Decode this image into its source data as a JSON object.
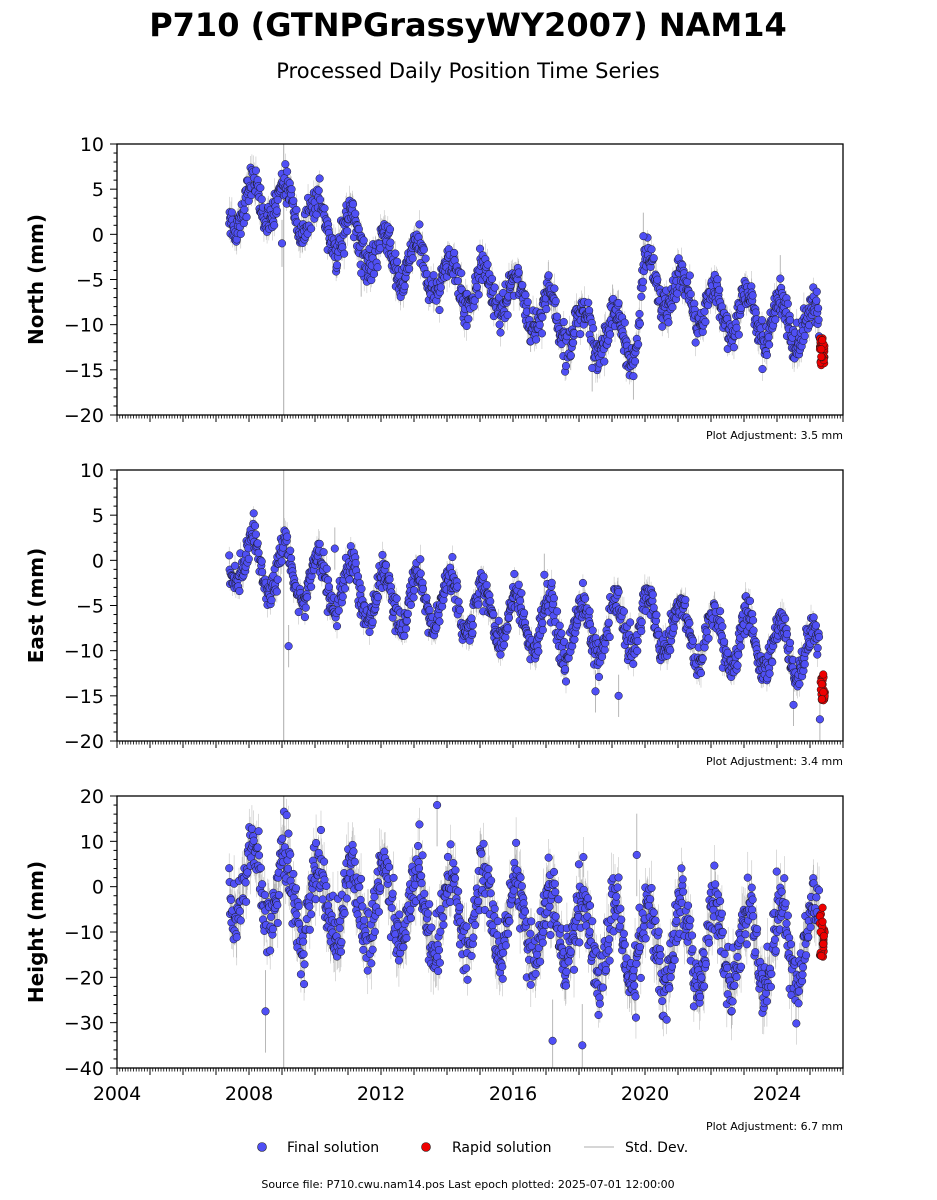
{
  "title": "P710 (GTNPGrassyWY2007) NAM14",
  "subtitle": "Processed Daily Position Time Series",
  "source_note": "Source file: P710.cwu.nam14.pos  Last epoch plotted: 2025-07-01 12:00:00",
  "legend": {
    "final": "Final solution",
    "rapid": "Rapid solution",
    "std": "Std. Dev."
  },
  "colors": {
    "final": "#4f4ff5",
    "rapid": "#ee0000",
    "std": "#b8b8b8"
  },
  "chart_data": [
    {
      "type": "scatter",
      "ylabel": "North (mm)",
      "ylim": [
        -20,
        10
      ],
      "yticks": [
        10,
        5,
        0,
        -5,
        -10,
        -15,
        -20
      ],
      "xlim": [
        2004,
        2026
      ],
      "adjustment": "Plot Adjustment: 3.5 mm",
      "trend": [
        [
          2007.4,
          3
        ],
        [
          2009,
          3.5
        ],
        [
          2010,
          2
        ],
        [
          2012,
          -2
        ],
        [
          2014,
          -5
        ],
        [
          2016,
          -7
        ],
        [
          2018,
          -10.5
        ],
        [
          2019.7,
          -11.5
        ],
        [
          2020,
          -5
        ],
        [
          2022,
          -8
        ],
        [
          2024,
          -10
        ],
        [
          2025.4,
          -10
        ]
      ],
      "seasonal_amp": 2.5,
      "noise": 1.0,
      "outliers": [
        [
          2009.0,
          -1
        ],
        [
          2011.4,
          -4.3
        ],
        [
          2019.95,
          -0.2
        ],
        [
          2024.1,
          -4.9
        ],
        [
          2019.65,
          -15.7
        ],
        [
          2018.4,
          -14.8
        ]
      ],
      "rapid": {
        "x": [
          2025.3,
          2025.45
        ],
        "y": [
          -14.5,
          -11.5
        ]
      }
    },
    {
      "type": "scatter",
      "ylabel": "East (mm)",
      "ylim": [
        -20,
        10
      ],
      "yticks": [
        10,
        5,
        0,
        -5,
        -10,
        -15,
        -20
      ],
      "xlim": [
        2004,
        2026
      ],
      "adjustment": "Plot Adjustment: 3.4 mm",
      "trend": [
        [
          2007.4,
          0.5
        ],
        [
          2010,
          -2.5
        ],
        [
          2012,
          -4
        ],
        [
          2014,
          -4.5
        ],
        [
          2016,
          -6.5
        ],
        [
          2018,
          -8
        ],
        [
          2020,
          -7
        ],
        [
          2022,
          -8.5
        ],
        [
          2024,
          -9.5
        ],
        [
          2025.4,
          -10.5
        ]
      ],
      "seasonal_amp": 3.0,
      "noise": 0.9,
      "outliers": [
        [
          2010.6,
          1.3
        ],
        [
          2016.95,
          -1.6
        ],
        [
          2009.2,
          -9.5
        ],
        [
          2018.5,
          -14.5
        ],
        [
          2019.2,
          -15
        ],
        [
          2024.5,
          -16
        ],
        [
          2025.3,
          -17.6
        ]
      ],
      "rapid": {
        "x": [
          2025.3,
          2025.45
        ],
        "y": [
          -15.5,
          -12.5
        ]
      }
    },
    {
      "type": "scatter",
      "ylabel": "Height (mm)",
      "ylim": [
        -40,
        20
      ],
      "yticks": [
        20,
        10,
        0,
        -10,
        -20,
        -30,
        -40
      ],
      "xlim": [
        2004,
        2026
      ],
      "xticks": [
        2004,
        2008,
        2012,
        2016,
        2020,
        2024
      ],
      "adjustment": "Plot Adjustment: 6.7 mm",
      "trend": [
        [
          2007.4,
          2
        ],
        [
          2010,
          -3
        ],
        [
          2012,
          -4
        ],
        [
          2014,
          -5
        ],
        [
          2016,
          -7
        ],
        [
          2018,
          -11
        ],
        [
          2020,
          -13
        ],
        [
          2022,
          -13
        ],
        [
          2024,
          -13
        ],
        [
          2025.4,
          -13
        ]
      ],
      "seasonal_amp": 9.0,
      "noise": 3.5,
      "outliers": [
        [
          2008.5,
          -27.5
        ],
        [
          2013.7,
          18
        ],
        [
          2019.75,
          7
        ],
        [
          2018.1,
          -35
        ],
        [
          2017.2,
          -34
        ]
      ],
      "rapid": {
        "x": [
          2025.3,
          2025.45
        ],
        "y": [
          -16,
          -4.5
        ]
      }
    }
  ]
}
